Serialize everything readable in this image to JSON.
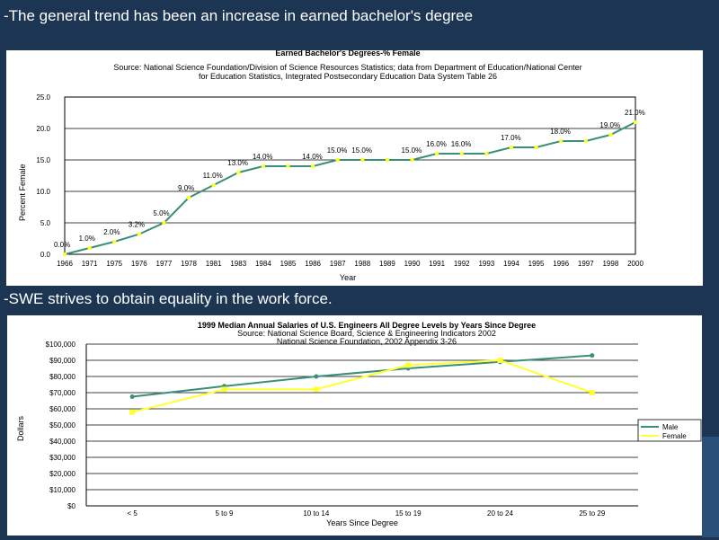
{
  "slide": {
    "caption1": "-The general trend has been an increase in earned bachelor's degree",
    "caption2": "-SWE strives to obtain equality in the work force."
  },
  "chart1": {
    "title": "Earned Bachelor's Degrees-% Female",
    "source_line1": "Source: National Science Foundation/Division of Science Resources Statistics; data from Department of Education/National Center",
    "source_line2": "for Education Statistics, Integrated Postsecondary Education Data System Table 26"
  },
  "chart2": {
    "title": "1999 Median Annual Salaries of U.S. Engineers All Degree Levels by Years Since Degree",
    "source_line1": "Source: National Science Board, Science & Engineering Indicators 2002",
    "source_line2": "National Science Foundation, 2002 Appendix 3-26"
  },
  "chart_data": [
    {
      "type": "line",
      "title": "Earned Bachelor's Degrees-% Female",
      "xlabel": "Year",
      "ylabel": "Percent Female",
      "categories": [
        "1966",
        "1971",
        "1975",
        "1976",
        "1977",
        "1978",
        "1981",
        "1983",
        "1984",
        "1985",
        "1986",
        "1987",
        "1988",
        "1989",
        "1990",
        "1991",
        "1992",
        "1993",
        "1994",
        "1995",
        "1996",
        "1997",
        "1998",
        "2000"
      ],
      "series": [
        {
          "values": [
            0.0,
            1.0,
            2.0,
            3.2,
            5.0,
            9.0,
            11.0,
            13.0,
            14.0,
            14.0,
            14.0,
            15.0,
            15.0,
            15.0,
            15.0,
            16.0,
            16.0,
            16.0,
            17.0,
            17.0,
            18.0,
            18.0,
            19.0,
            21.0
          ]
        }
      ],
      "data_labels": [
        "0.0%",
        "1.0%",
        "2.0%",
        "3.2%",
        "5.0%",
        "9.0%",
        "11.0%",
        "13.0%",
        "14.0%",
        "14.0%",
        "15.0%",
        "15.0%",
        "15.0%",
        "16.0%",
        "16.0%",
        "17.0%",
        "18.0%",
        "19.0%",
        "21.0%"
      ],
      "data_label_indices": [
        0,
        1,
        2,
        3,
        4,
        5,
        6,
        7,
        8,
        10,
        11,
        12,
        14,
        15,
        16,
        18,
        20,
        22,
        23
      ],
      "ylim": [
        0,
        25
      ],
      "yticks": [
        "0.0",
        "5.0",
        "10.0",
        "15.0",
        "20.0",
        "25.0"
      ],
      "grid": true,
      "line_color": "#3a8f7a",
      "marker_color": "#ffff33"
    },
    {
      "type": "line",
      "title": "1999 Median Annual Salaries of U.S. Engineers All Degree Levels by Years Since Degree",
      "xlabel": "Years Since Degree",
      "ylabel": "Dollars",
      "categories": [
        "< 5",
        "5 to 9",
        "10 to 14",
        "15 to 19",
        "20 to 24",
        "25 to 29"
      ],
      "series": [
        {
          "name": "Male",
          "values": [
            67500,
            74000,
            80000,
            85000,
            89000,
            93000
          ],
          "color": "#3a8f7a"
        },
        {
          "name": "Female",
          "values": [
            58000,
            72000,
            72000,
            87000,
            90000,
            70000
          ],
          "color": "#ffff33"
        }
      ],
      "ylim": [
        0,
        100000
      ],
      "yticks": [
        "$0",
        "$10,000",
        "$20,000",
        "$30,000",
        "$40,000",
        "$50,000",
        "$60,000",
        "$70,000",
        "$80,000",
        "$90,000",
        "$100,000"
      ],
      "legend": "right",
      "grid": true
    }
  ]
}
